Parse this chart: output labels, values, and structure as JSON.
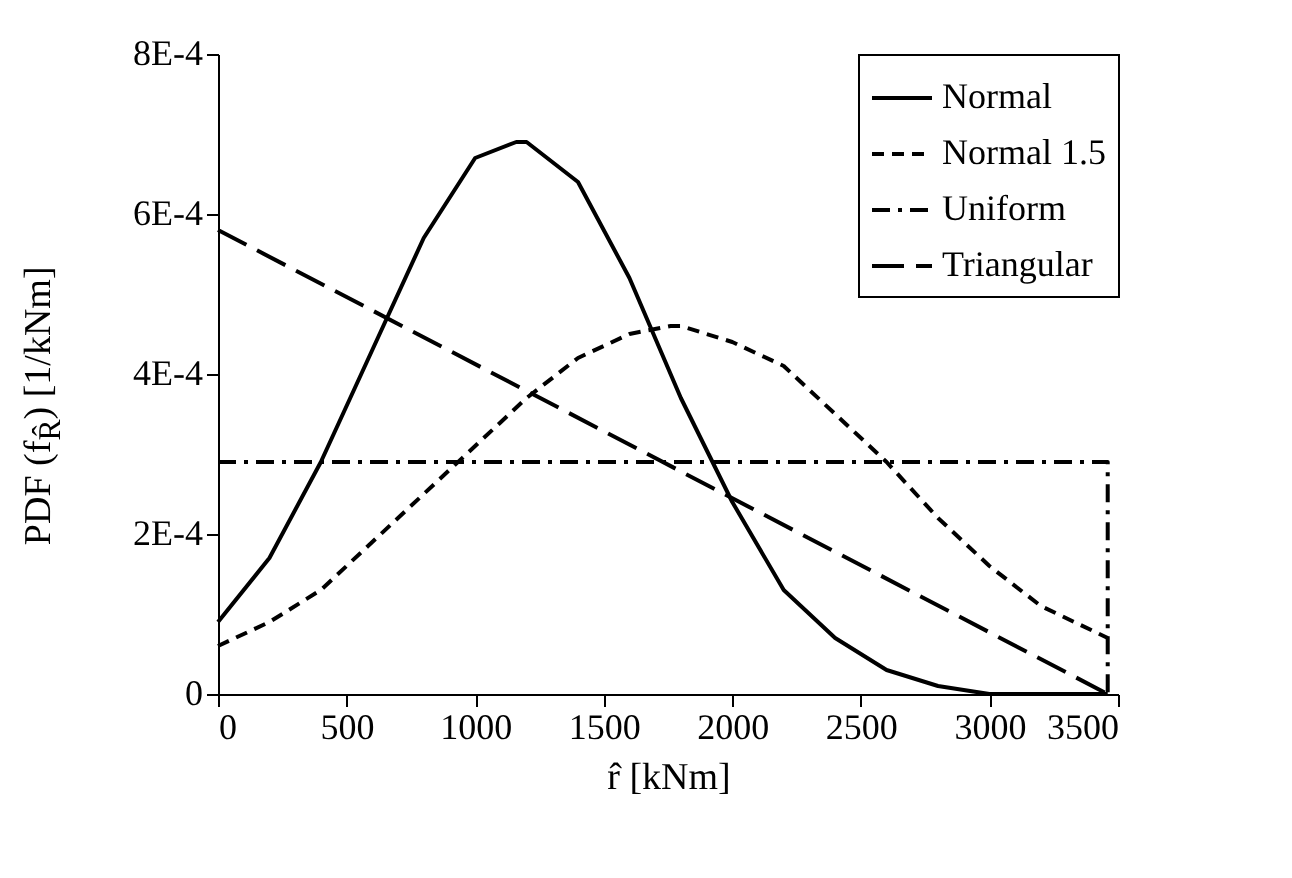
{
  "chart_data": {
    "type": "line",
    "xlabel": "r̂ [kNm]",
    "ylabel": "PDF (f$_{R̂}$) [1/kNm]",
    "xlim": [
      0,
      3500
    ],
    "xticks": [
      0,
      500,
      1000,
      1500,
      2000,
      2500,
      3000,
      3500
    ],
    "ylim": [
      0,
      0.0008
    ],
    "yticks": [
      0,
      {
        "value": 0.0002,
        "label": "2E-4"
      },
      {
        "value": 0.0004,
        "label": "4E-4"
      },
      {
        "value": 0.0006,
        "label": "6E-4"
      },
      {
        "value": 0.0008,
        "label": "8E-4"
      }
    ],
    "grid": false,
    "legend": "top right",
    "marker": "none",
    "series": [
      {
        "name": "Normal",
        "color": "#000000",
        "line_style": "solid",
        "x": [
          0,
          200,
          400,
          600,
          800,
          1000,
          1160,
          1200,
          1400,
          1600,
          1800,
          2000,
          2200,
          2400,
          2600,
          2800,
          3000,
          3200,
          3460
        ],
        "values": [
          9e-05,
          0.00017,
          0.00029,
          0.00043,
          0.00057,
          0.00067,
          0.00069,
          0.00069,
          0.00064,
          0.00052,
          0.00037,
          0.00024,
          0.00013,
          7e-05,
          3e-05,
          1e-05,
          0,
          0,
          0
        ]
      },
      {
        "name": "Normal 1.5",
        "color": "#000000",
        "line_style": "dashed",
        "x": [
          0,
          200,
          400,
          600,
          800,
          1000,
          1200,
          1400,
          1600,
          1760,
          1800,
          2000,
          2200,
          2400,
          2600,
          2800,
          3000,
          3200,
          3460
        ],
        "values": [
          6e-05,
          9e-05,
          0.00013,
          0.00019,
          0.00025,
          0.00031,
          0.00037,
          0.00042,
          0.00045,
          0.00046,
          0.00046,
          0.00044,
          0.00041,
          0.00035,
          0.00029,
          0.00022,
          0.00016,
          0.00011,
          7e-05
        ]
      },
      {
        "name": "Uniform",
        "color": "#000000",
        "line_style": "dashdot",
        "x": [
          0,
          3460,
          3460
        ],
        "values": [
          0.00029,
          0.00029,
          0
        ]
      },
      {
        "name": "Triangular",
        "color": "#000000",
        "line_style": "longdash",
        "x": [
          0,
          3460
        ],
        "values": [
          0.00058,
          0
        ]
      }
    ]
  }
}
